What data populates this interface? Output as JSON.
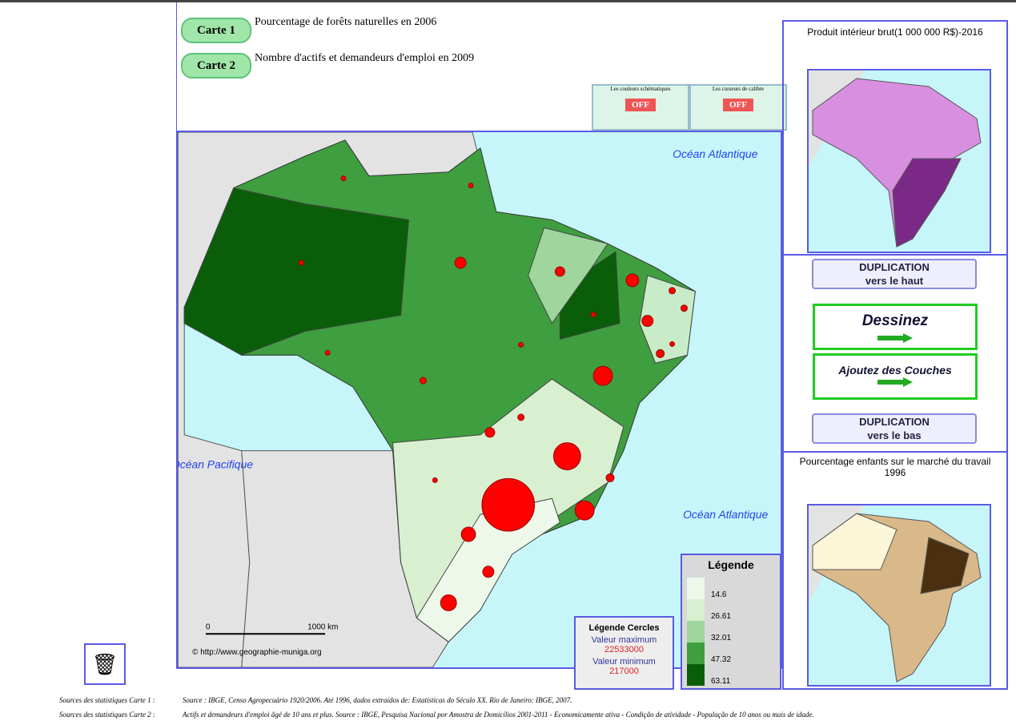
{
  "header": {
    "map1": {
      "button": "Carte 1",
      "title": "Pourcentage de forêts naturelles en 2006"
    },
    "map2": {
      "button": "Carte 2",
      "title": "Nombre d'actifs et demandeurs d'emploi en 2009"
    }
  },
  "toggles": [
    {
      "label": "Les couleurs schématiques",
      "state": "OFF"
    },
    {
      "label": "Les curseurs de calibre",
      "state": "OFF"
    }
  ],
  "map": {
    "labels": [
      "Océan Atlantique",
      "Océan Pacifique",
      "Océan Atlantique"
    ],
    "scale": {
      "start": "0",
      "end": "1000 km"
    },
    "credit": "© http://www.geographie-muniga.org"
  },
  "legend": {
    "title": "Légende",
    "classes": [
      14.6,
      26.61,
      32.01,
      47.32,
      63.11
    ]
  },
  "circle_legend": {
    "title": "Légende Cercles",
    "max_label": "Valeur maximum",
    "max": 22533000,
    "min_label": "Valeur minimum",
    "min": 217000
  },
  "side": {
    "top_title": "Produit intérieur brut(1 000 000 R$)-2016",
    "dup_up": {
      "line1": "DUPLICATION",
      "line2": "vers le haut"
    },
    "draw": "Dessinez",
    "layers": "Ajoutez des Couches",
    "dup_down": {
      "line1": "DUPLICATION",
      "line2": "vers le bas"
    },
    "bottom_title": "Pourcentage enfants sur le marché du travail 1996"
  },
  "sources": [
    {
      "label": "Sources des statistiques Carte 1 :",
      "text": "Source : IBGE, Censo Agropecuário 1920/2006. Até 1996, dados extraídos de: Estatísticas do Século XX. Rio de Janeiro: IBGE, 2007."
    },
    {
      "label": "Sources des statistiques Carte 2 :",
      "text": "Actifs et demandeurs d'emploi âgé de 10 ans et plus. Source : IBGE, Pesquisa Nacional por Amostra de Domicílios 2001-2011 - Economicamente ativa - Condição de atividade - População de 10 anos ou mais de idade."
    }
  ]
}
